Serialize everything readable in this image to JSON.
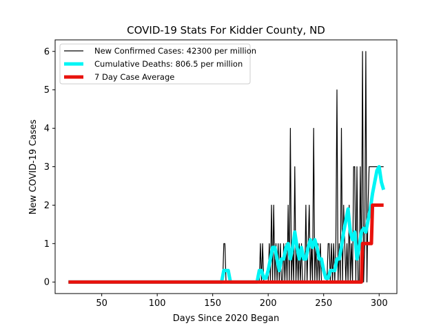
{
  "chart_data": {
    "type": "line",
    "title": "COVID-19 Stats For Kidder County, ND",
    "xlabel": "Days Since 2020 Began",
    "ylabel": "New COVID-19 Cases",
    "xlim": [
      8,
      316
    ],
    "ylim": [
      -0.3,
      6.3
    ],
    "xticks": [
      50,
      100,
      150,
      200,
      250,
      300
    ],
    "yticks": [
      0,
      1,
      2,
      3,
      4,
      5,
      6
    ],
    "grid": false,
    "legend_position": "top-left",
    "series": [
      {
        "name": "New Confirmed Cases: 42300 per million",
        "color": "#000000",
        "x": [
          20,
          158,
          159,
          160,
          161,
          162,
          163,
          192,
          193,
          194,
          195,
          196,
          197,
          200,
          201,
          202,
          203,
          204,
          205,
          206,
          207,
          208,
          209,
          210,
          211,
          212,
          213,
          214,
          215,
          216,
          217,
          218,
          219,
          220,
          221,
          222,
          223,
          224,
          225,
          226,
          227,
          228,
          229,
          230,
          231,
          232,
          233,
          234,
          235,
          236,
          237,
          238,
          239,
          240,
          241,
          242,
          243,
          244,
          245,
          246,
          247,
          248,
          249,
          250,
          251,
          252,
          253,
          254,
          255,
          256,
          257,
          258,
          259,
          260,
          261,
          262,
          263,
          264,
          265,
          266,
          267,
          268,
          269,
          270,
          271,
          272,
          273,
          274,
          275,
          276,
          277,
          278,
          279,
          280,
          281,
          282,
          283,
          284,
          285,
          286,
          287,
          288,
          289,
          290,
          291,
          292,
          293,
          294,
          295,
          296,
          297,
          298,
          299,
          300,
          301,
          302,
          303,
          304
        ],
        "y": [
          0,
          0,
          0,
          1,
          1,
          0,
          0,
          0,
          1,
          0,
          1,
          0,
          0,
          0,
          1,
          0,
          2,
          0,
          2,
          0,
          1,
          0,
          1,
          0,
          1,
          0,
          0,
          1,
          0,
          1,
          0,
          2,
          0,
          4,
          0,
          1,
          0,
          3,
          0,
          1,
          0,
          1,
          0,
          1,
          0,
          0,
          0,
          2,
          0,
          1,
          2,
          0,
          1,
          0,
          4,
          0,
          1,
          0,
          1,
          0,
          1,
          0,
          0,
          0,
          0,
          0,
          0,
          1,
          1,
          0,
          1,
          0,
          1,
          0,
          1,
          5,
          0,
          1,
          0,
          4,
          0,
          2,
          1,
          0,
          1,
          0,
          2,
          0,
          1,
          0,
          3,
          3,
          0,
          3,
          0,
          0,
          3,
          0,
          6,
          0,
          1,
          6,
          0,
          2,
          3,
          3,
          3,
          3,
          3,
          3,
          3,
          3,
          3,
          3,
          3,
          3,
          3,
          3
        ]
      },
      {
        "name": "Cumulative Deaths: 806.5 per million",
        "color": "#00f5f5",
        "x": [
          20,
          158,
          160,
          162,
          164,
          166,
          168,
          190,
          192,
          194,
          196,
          198,
          200,
          202,
          204,
          206,
          208,
          210,
          212,
          214,
          216,
          218,
          220,
          222,
          224,
          226,
          228,
          230,
          232,
          234,
          236,
          238,
          240,
          242,
          244,
          246,
          248,
          250,
          252,
          254,
          256,
          258,
          260,
          262,
          264,
          266,
          268,
          270,
          272,
          274,
          276,
          278,
          280,
          282,
          284,
          286,
          288,
          290,
          292,
          294,
          296,
          298,
          300,
          302,
          304
        ],
        "y": [
          0,
          0,
          0.3,
          0.3,
          0.3,
          0,
          0,
          0,
          0.3,
          0.3,
          0.1,
          0.1,
          0.3,
          0.6,
          0.9,
          0.9,
          0.6,
          0.3,
          0.6,
          0.6,
          0.9,
          1.0,
          0.6,
          0.9,
          1.3,
          0.9,
          0.6,
          0.9,
          0.6,
          0.6,
          0.9,
          1.1,
          0.9,
          1.1,
          0.9,
          0.6,
          0.6,
          0.3,
          0.1,
          0.1,
          0.3,
          0.3,
          0.3,
          0.6,
          0.6,
          0.9,
          1.3,
          1.6,
          1.9,
          1.3,
          1.1,
          1.3,
          0.6,
          0.9,
          1.3,
          1.4,
          1.3,
          1.6,
          1.9,
          2.3,
          2.6,
          2.9,
          3.0,
          2.6,
          2.4
        ]
      },
      {
        "name": "7 Day Case Average",
        "color": "#e8120c",
        "x": [
          20,
          283,
          284,
          285,
          286,
          287,
          288,
          289,
          290,
          291,
          292,
          293,
          294,
          295,
          296,
          297,
          298,
          299,
          300,
          301,
          302,
          303,
          304
        ],
        "y": [
          0,
          0,
          0,
          1,
          1,
          1,
          1,
          1,
          1,
          1,
          1,
          1,
          2,
          2,
          2,
          2,
          2,
          2,
          2,
          2,
          2,
          2,
          2
        ]
      }
    ]
  }
}
